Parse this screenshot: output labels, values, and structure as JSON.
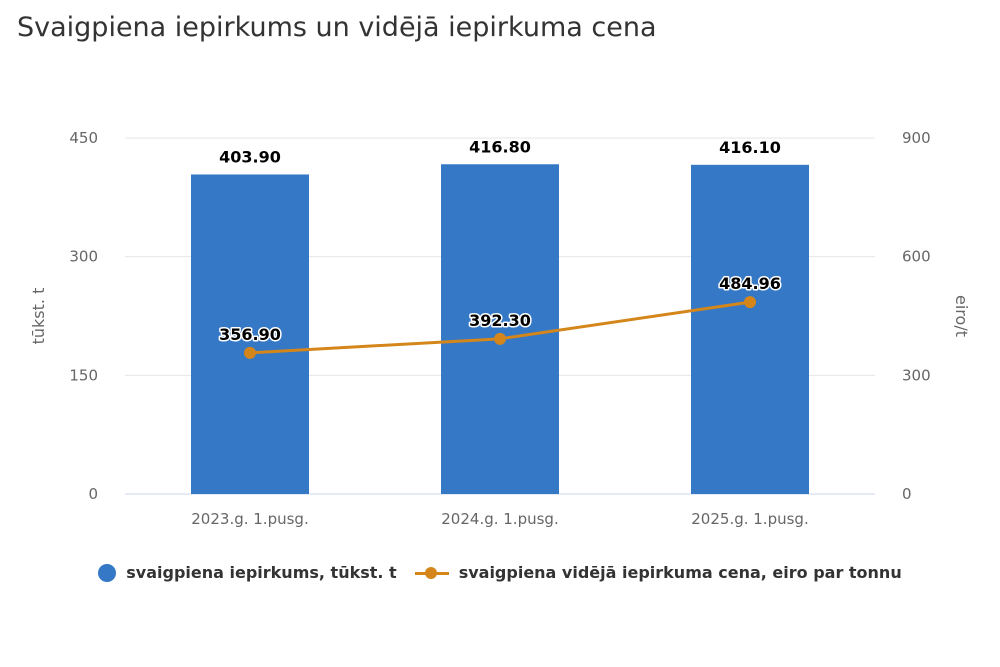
{
  "title": "Svaigpiena iepirkums un vidējā iepirkuma cena",
  "colors": {
    "bars": "#3478C6",
    "line": "#D4861A"
  },
  "chart_data": {
    "type": "bar+line",
    "title": "Svaigpiena iepirkums un vidējā iepirkuma cena",
    "categories": [
      "2023.g. 1.pusg.",
      "2024.g. 1.pusg.",
      "2025.g. 1.pusg."
    ],
    "y_left": {
      "label": "tūkst. t",
      "range": [
        0,
        450
      ],
      "ticks": [
        0,
        150,
        300,
        450
      ]
    },
    "y_right": {
      "label": "eiro/t",
      "range": [
        0,
        900
      ],
      "ticks": [
        0,
        300,
        600,
        900
      ]
    },
    "series": [
      {
        "name": "svaigpiena iepirkums, tūkst. t",
        "type": "bar",
        "axis": "left",
        "values": [
          403.9,
          416.8,
          416.1
        ],
        "labels": [
          "403.90",
          "416.80",
          "416.10"
        ]
      },
      {
        "name": "svaigpiena vidējā iepirkuma cena, eiro par tonnu",
        "type": "line",
        "axis": "right",
        "values": [
          356.9,
          392.3,
          484.96
        ],
        "labels": [
          "356.90",
          "392.30",
          "484.96"
        ]
      }
    ],
    "grid": true,
    "legend": "bottom"
  }
}
